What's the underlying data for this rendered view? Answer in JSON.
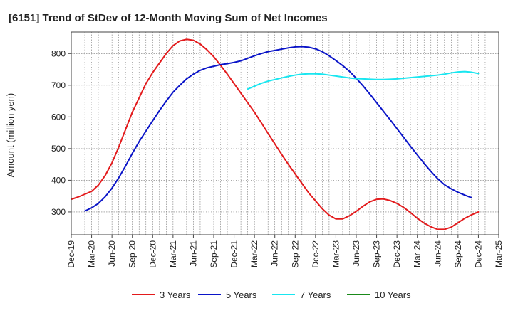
{
  "chart_data": {
    "type": "line",
    "title": "[6151]  Trend of StDev of 12-Month Moving Sum of Net Incomes",
    "xlabel": "",
    "ylabel": "Amount (million yen)",
    "x_ticks": [
      "Dec-19",
      "Mar-20",
      "Jun-20",
      "Sep-20",
      "Dec-20",
      "Mar-21",
      "Jun-21",
      "Sep-21",
      "Dec-21",
      "Mar-22",
      "Jun-22",
      "Sep-22",
      "Dec-22",
      "Mar-23",
      "Jun-23",
      "Sep-23",
      "Dec-23",
      "Mar-24",
      "Jun-24",
      "Sep-24",
      "Dec-24",
      "Mar-25"
    ],
    "y_ticks": [
      300,
      400,
      500,
      600,
      700,
      800
    ],
    "ylim": [
      228,
      868
    ],
    "grid": true,
    "legend_position": "bottom",
    "series": [
      {
        "name": "3 Years",
        "color": "#e31a1c",
        "points": [
          [
            "Dec-19",
            340
          ],
          [
            "Jan-20",
            347
          ],
          [
            "Feb-20",
            356
          ],
          [
            "Mar-20",
            365
          ],
          [
            "Apr-20",
            385
          ],
          [
            "May-20",
            415
          ],
          [
            "Jun-20",
            455
          ],
          [
            "Jul-20",
            505
          ],
          [
            "Aug-20",
            560
          ],
          [
            "Sep-20",
            615
          ],
          [
            "Oct-20",
            660
          ],
          [
            "Nov-20",
            705
          ],
          [
            "Dec-20",
            740
          ],
          [
            "Jan-21",
            770
          ],
          [
            "Feb-21",
            800
          ],
          [
            "Mar-21",
            825
          ],
          [
            "Apr-21",
            840
          ],
          [
            "May-21",
            845
          ],
          [
            "Jun-21",
            842
          ],
          [
            "Jul-21",
            830
          ],
          [
            "Aug-21",
            812
          ],
          [
            "Sep-21",
            790
          ],
          [
            "Oct-21",
            763
          ],
          [
            "Nov-21",
            735
          ],
          [
            "Dec-21",
            705
          ],
          [
            "Jan-22",
            675
          ],
          [
            "Feb-22",
            645
          ],
          [
            "Mar-22",
            615
          ],
          [
            "Apr-22",
            582
          ],
          [
            "May-22",
            548
          ],
          [
            "Jun-22",
            515
          ],
          [
            "Jul-22",
            482
          ],
          [
            "Aug-22",
            450
          ],
          [
            "Sep-22",
            420
          ],
          [
            "Oct-22",
            390
          ],
          [
            "Nov-22",
            360
          ],
          [
            "Dec-22",
            335
          ],
          [
            "Jan-23",
            310
          ],
          [
            "Feb-23",
            290
          ],
          [
            "Mar-23",
            278
          ],
          [
            "Apr-23",
            278
          ],
          [
            "May-23",
            288
          ],
          [
            "Jun-23",
            302
          ],
          [
            "Jul-23",
            318
          ],
          [
            "Aug-23",
            332
          ],
          [
            "Sep-23",
            340
          ],
          [
            "Oct-23",
            341
          ],
          [
            "Nov-23",
            336
          ],
          [
            "Dec-23",
            327
          ],
          [
            "Jan-24",
            314
          ],
          [
            "Feb-24",
            298
          ],
          [
            "Mar-24",
            280
          ],
          [
            "Apr-24",
            265
          ],
          [
            "May-24",
            253
          ],
          [
            "Jun-24",
            245
          ],
          [
            "Jul-24",
            245
          ],
          [
            "Aug-24",
            252
          ],
          [
            "Sep-24",
            266
          ],
          [
            "Oct-24",
            280
          ],
          [
            "Nov-24",
            291
          ],
          [
            "Dec-24",
            300
          ]
        ]
      },
      {
        "name": "5 Years",
        "color": "#0a14c8",
        "points": [
          [
            "Feb-20",
            303
          ],
          [
            "Mar-20",
            313
          ],
          [
            "Apr-20",
            327
          ],
          [
            "May-20",
            348
          ],
          [
            "Jun-20",
            375
          ],
          [
            "Jul-20",
            408
          ],
          [
            "Aug-20",
            445
          ],
          [
            "Sep-20",
            485
          ],
          [
            "Oct-20",
            522
          ],
          [
            "Nov-20",
            555
          ],
          [
            "Dec-20",
            588
          ],
          [
            "Jan-21",
            620
          ],
          [
            "Feb-21",
            650
          ],
          [
            "Mar-21",
            678
          ],
          [
            "Apr-21",
            700
          ],
          [
            "May-21",
            720
          ],
          [
            "Jun-21",
            735
          ],
          [
            "Jul-21",
            747
          ],
          [
            "Aug-21",
            755
          ],
          [
            "Sep-21",
            760
          ],
          [
            "Oct-21",
            765
          ],
          [
            "Nov-21",
            768
          ],
          [
            "Dec-21",
            772
          ],
          [
            "Jan-22",
            777
          ],
          [
            "Feb-22",
            785
          ],
          [
            "Mar-22",
            793
          ],
          [
            "Apr-22",
            800
          ],
          [
            "May-22",
            806
          ],
          [
            "Jun-22",
            810
          ],
          [
            "Jul-22",
            814
          ],
          [
            "Aug-22",
            818
          ],
          [
            "Sep-22",
            821
          ],
          [
            "Oct-22",
            822
          ],
          [
            "Nov-22",
            820
          ],
          [
            "Dec-22",
            815
          ],
          [
            "Jan-23",
            806
          ],
          [
            "Feb-23",
            793
          ],
          [
            "Mar-23",
            778
          ],
          [
            "Apr-23",
            762
          ],
          [
            "May-23",
            744
          ],
          [
            "Jun-23",
            722
          ],
          [
            "Jul-23",
            698
          ],
          [
            "Aug-23",
            672
          ],
          [
            "Sep-23",
            645
          ],
          [
            "Oct-23",
            618
          ],
          [
            "Nov-23",
            591
          ],
          [
            "Dec-23",
            563
          ],
          [
            "Jan-24",
            535
          ],
          [
            "Feb-24",
            507
          ],
          [
            "Mar-24",
            480
          ],
          [
            "Apr-24",
            453
          ],
          [
            "May-24",
            428
          ],
          [
            "Jun-24",
            405
          ],
          [
            "Jul-24",
            386
          ],
          [
            "Aug-24",
            373
          ],
          [
            "Sep-24",
            362
          ],
          [
            "Oct-24",
            353
          ],
          [
            "Nov-24",
            345
          ]
        ]
      },
      {
        "name": "7 Years",
        "color": "#19e6f0",
        "points": [
          [
            "Feb-22",
            688
          ],
          [
            "Mar-22",
            697
          ],
          [
            "Apr-22",
            706
          ],
          [
            "May-22",
            713
          ],
          [
            "Jun-22",
            718
          ],
          [
            "Jul-22",
            723
          ],
          [
            "Aug-22",
            728
          ],
          [
            "Sep-22",
            732
          ],
          [
            "Oct-22",
            735
          ],
          [
            "Nov-22",
            736
          ],
          [
            "Dec-22",
            736
          ],
          [
            "Jan-23",
            735
          ],
          [
            "Feb-23",
            732
          ],
          [
            "Mar-23",
            729
          ],
          [
            "Apr-23",
            726
          ],
          [
            "May-23",
            723
          ],
          [
            "Jun-23",
            721
          ],
          [
            "Jul-23",
            720
          ],
          [
            "Aug-23",
            719
          ],
          [
            "Sep-23",
            718
          ],
          [
            "Oct-23",
            718
          ],
          [
            "Nov-23",
            719
          ],
          [
            "Dec-23",
            720
          ],
          [
            "Jan-24",
            722
          ],
          [
            "Feb-24",
            724
          ],
          [
            "Mar-24",
            726
          ],
          [
            "Apr-24",
            728
          ],
          [
            "May-24",
            730
          ],
          [
            "Jun-24",
            732
          ],
          [
            "Jul-24",
            735
          ],
          [
            "Aug-24",
            739
          ],
          [
            "Sep-24",
            742
          ],
          [
            "Oct-24",
            743
          ],
          [
            "Nov-24",
            741
          ],
          [
            "Dec-24",
            737
          ]
        ]
      },
      {
        "name": "10 Years",
        "color": "#1a8a1a",
        "points": []
      }
    ]
  }
}
